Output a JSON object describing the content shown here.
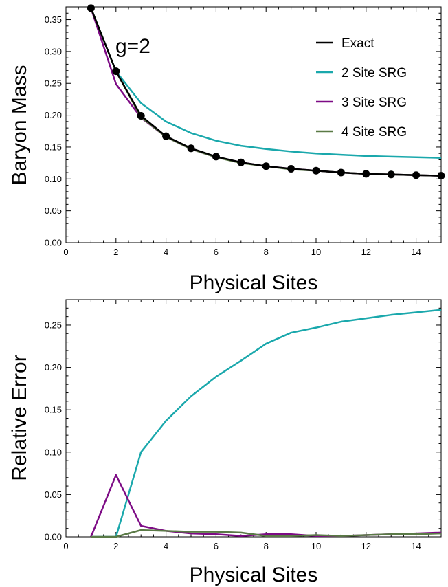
{
  "figure": {
    "colors": {
      "exact": "#000000",
      "site2": "#1aa8ac",
      "site3": "#7d0b85",
      "site4": "#5a7a46"
    }
  },
  "chart_data": [
    {
      "type": "line",
      "title": "",
      "annotation": "g=2",
      "xlabel": "Physical Sites",
      "ylabel": "Baryon Mass",
      "xlim": [
        0,
        15
      ],
      "ylim": [
        0,
        0.37
      ],
      "xticks": [
        0,
        2,
        4,
        6,
        8,
        10,
        12,
        14
      ],
      "yticks": [
        0.0,
        0.05,
        0.1,
        0.15,
        0.2,
        0.25,
        0.3,
        0.35
      ],
      "ytick_labels": [
        "0.00",
        "0.05",
        "0.10",
        "0.15",
        "0.20",
        "0.25",
        "0.30",
        "0.35"
      ],
      "legend_position": "top-right",
      "x": [
        1,
        2,
        3,
        4,
        5,
        6,
        7,
        8,
        9,
        10,
        11,
        12,
        13,
        14,
        15
      ],
      "series": [
        {
          "name": "Exact",
          "color_key": "exact",
          "markers": true,
          "values": [
            0.368,
            0.269,
            0.199,
            0.167,
            0.148,
            0.135,
            0.126,
            0.12,
            0.116,
            0.113,
            0.11,
            0.108,
            0.107,
            0.106,
            0.105
          ]
        },
        {
          "name": "2 Site SRG",
          "color_key": "site2",
          "markers": false,
          "values": [
            0.368,
            0.269,
            0.219,
            0.19,
            0.172,
            0.16,
            0.152,
            0.147,
            0.143,
            0.14,
            0.138,
            0.136,
            0.135,
            0.134,
            0.133
          ]
        },
        {
          "name": "3 Site SRG",
          "color_key": "site3",
          "markers": false,
          "values": [
            0.368,
            0.249,
            0.196,
            0.166,
            0.147,
            0.134,
            0.126,
            0.12,
            0.116,
            0.113,
            0.11,
            0.108,
            0.107,
            0.106,
            0.105
          ]
        },
        {
          "name": "4 Site SRG",
          "color_key": "site4",
          "markers": false,
          "values": [
            0.368,
            0.269,
            0.197,
            0.166,
            0.147,
            0.134,
            0.125,
            0.12,
            0.115,
            0.113,
            0.11,
            0.108,
            0.107,
            0.106,
            0.105
          ]
        }
      ]
    },
    {
      "type": "line",
      "title": "",
      "xlabel": "Physical Sites",
      "ylabel": "Relative Error",
      "xlim": [
        0,
        15
      ],
      "ylim": [
        0,
        0.28
      ],
      "xticks": [
        0,
        2,
        4,
        6,
        8,
        10,
        12,
        14
      ],
      "yticks": [
        0.0,
        0.05,
        0.1,
        0.15,
        0.2,
        0.25
      ],
      "ytick_labels": [
        "0.00",
        "0.05",
        "0.10",
        "0.15",
        "0.20",
        "0.25"
      ],
      "x": [
        1,
        2,
        3,
        4,
        5,
        6,
        7,
        8,
        9,
        10,
        11,
        12,
        13,
        14,
        15
      ],
      "series": [
        {
          "name": "2 Site SRG",
          "color_key": "site2",
          "values": [
            0.0,
            0.0,
            0.1,
            0.137,
            0.166,
            0.189,
            0.208,
            0.228,
            0.241,
            0.247,
            0.254,
            0.258,
            0.262,
            0.265,
            0.268
          ]
        },
        {
          "name": "3 Site SRG",
          "color_key": "site3",
          "values": [
            0.0,
            0.073,
            0.013,
            0.007,
            0.004,
            0.003,
            0.001,
            0.003,
            0.003,
            0.001,
            0.001,
            0.002,
            0.003,
            0.004,
            0.005
          ]
        },
        {
          "name": "4 Site SRG",
          "color_key": "site4",
          "values": [
            0.0,
            0.0,
            0.008,
            0.007,
            0.006,
            0.006,
            0.005,
            0.001,
            0.001,
            0.002,
            0.001,
            0.002,
            0.003,
            0.003,
            0.004
          ]
        }
      ]
    }
  ]
}
